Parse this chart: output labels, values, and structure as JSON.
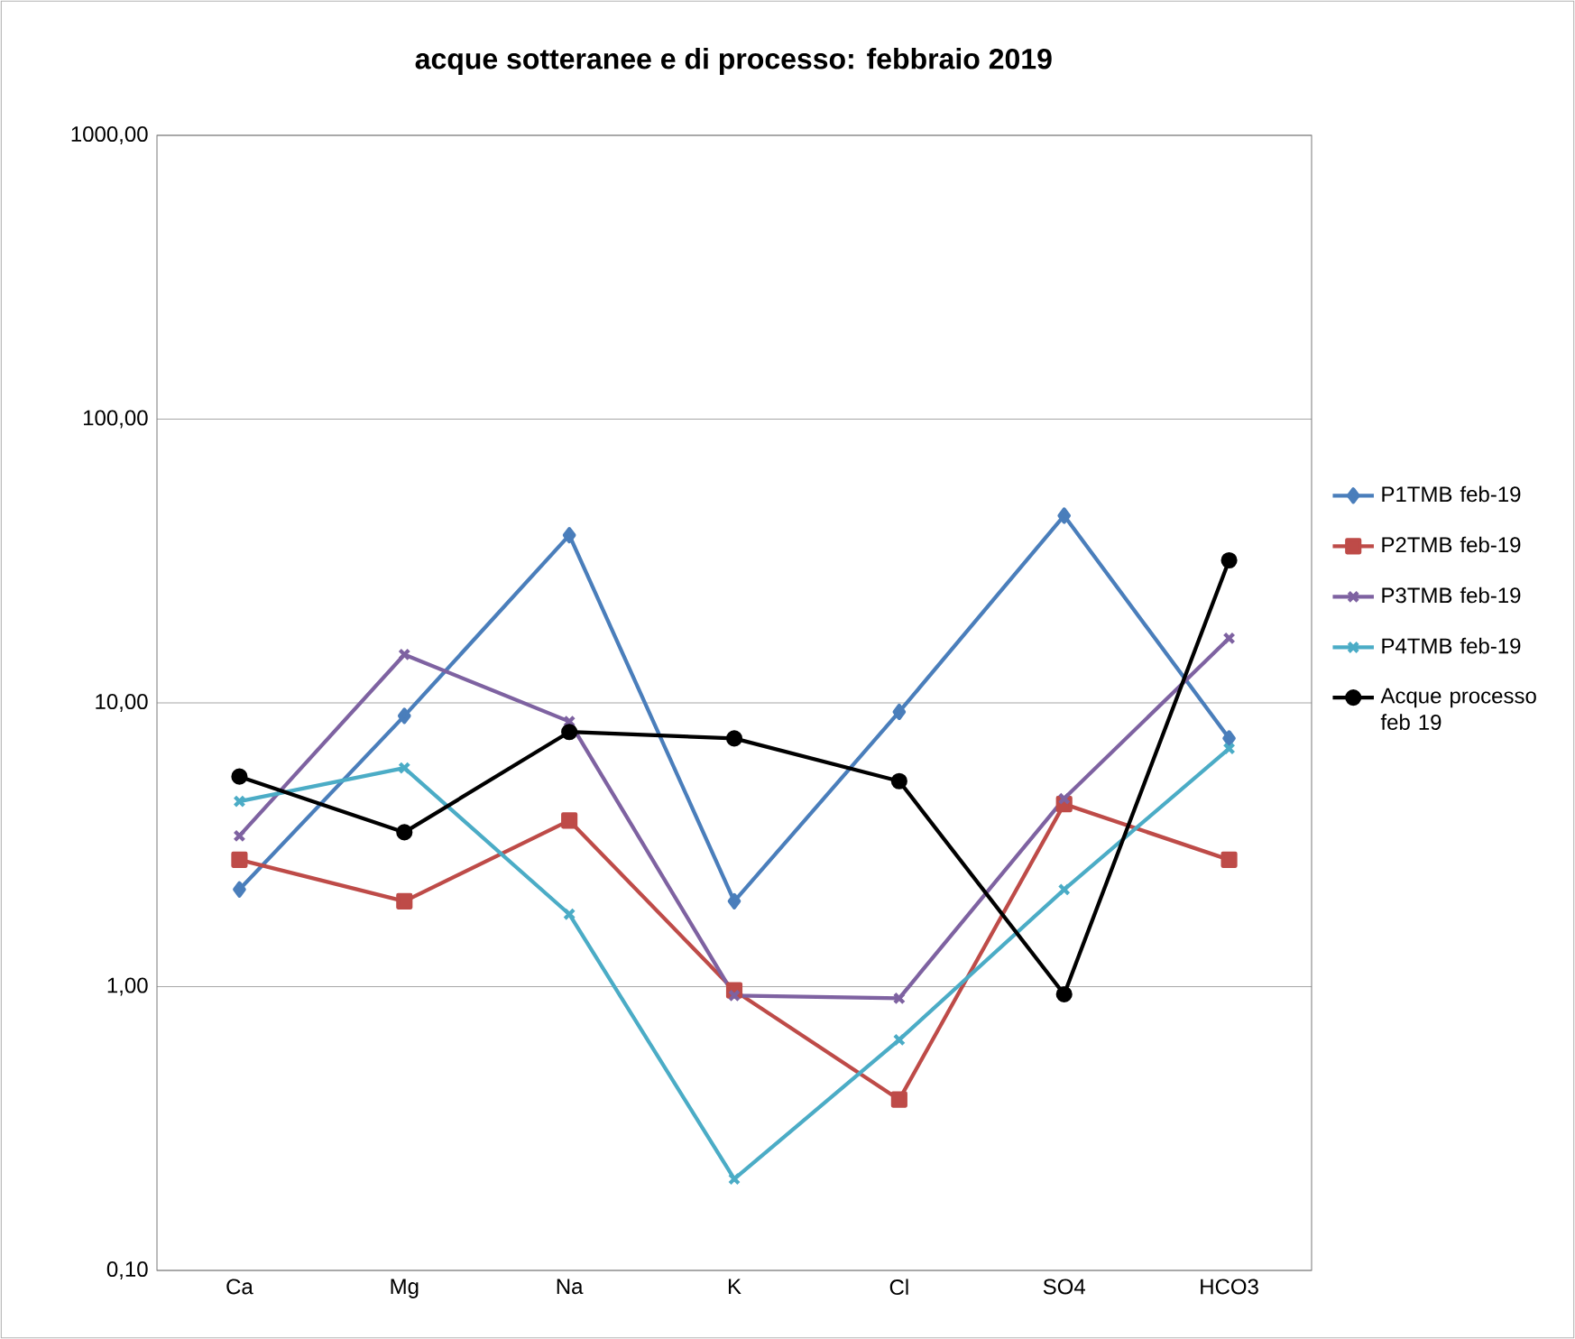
{
  "chart_data": {
    "type": "line",
    "title": "acque sotteranee e di processo: febbraio 2019",
    "categories": [
      "Ca",
      "Mg",
      "Na",
      "K",
      "Cl",
      "SO4",
      "HCO3"
    ],
    "series": [
      {
        "name": "P1TMB feb-19",
        "color": "#4a7ebb",
        "marker": "diamond",
        "values": [
          2.2,
          9.0,
          39,
          2.0,
          9.3,
          45.7,
          7.5
        ]
      },
      {
        "name": "P2TMB feb-19",
        "color": "#be4b48",
        "marker": "square",
        "values": [
          2.8,
          2.0,
          3.85,
          0.97,
          0.4,
          4.4,
          2.8
        ]
      },
      {
        "name": "P3TMB feb-19",
        "color": "#7e62a1",
        "marker": "cross",
        "values": [
          3.4,
          14.8,
          8.6,
          0.93,
          0.91,
          4.6,
          16.9
        ]
      },
      {
        "name": "P4TMB feb-19",
        "color": "#4bacc6",
        "marker": "cross",
        "values": [
          4.5,
          5.9,
          1.8,
          0.21,
          0.65,
          2.2,
          6.9
        ]
      },
      {
        "name": "Acque processo feb 19",
        "color": "#000000",
        "marker": "circle",
        "values": [
          5.5,
          3.5,
          7.9,
          7.5,
          5.3,
          0.94,
          31.8
        ]
      }
    ],
    "log": "y",
    "ylim": [
      0.1,
      1000
    ],
    "yticks": [
      {
        "value": 0.1,
        "label": "0,10"
      },
      {
        "value": 1,
        "label": "1,00"
      },
      {
        "value": 10,
        "label": "10,00"
      },
      {
        "value": 100,
        "label": "100,00"
      },
      {
        "value": 1000,
        "label": "1000,00"
      }
    ],
    "grid": "y",
    "legend": "right",
    "line_style": "solid"
  }
}
